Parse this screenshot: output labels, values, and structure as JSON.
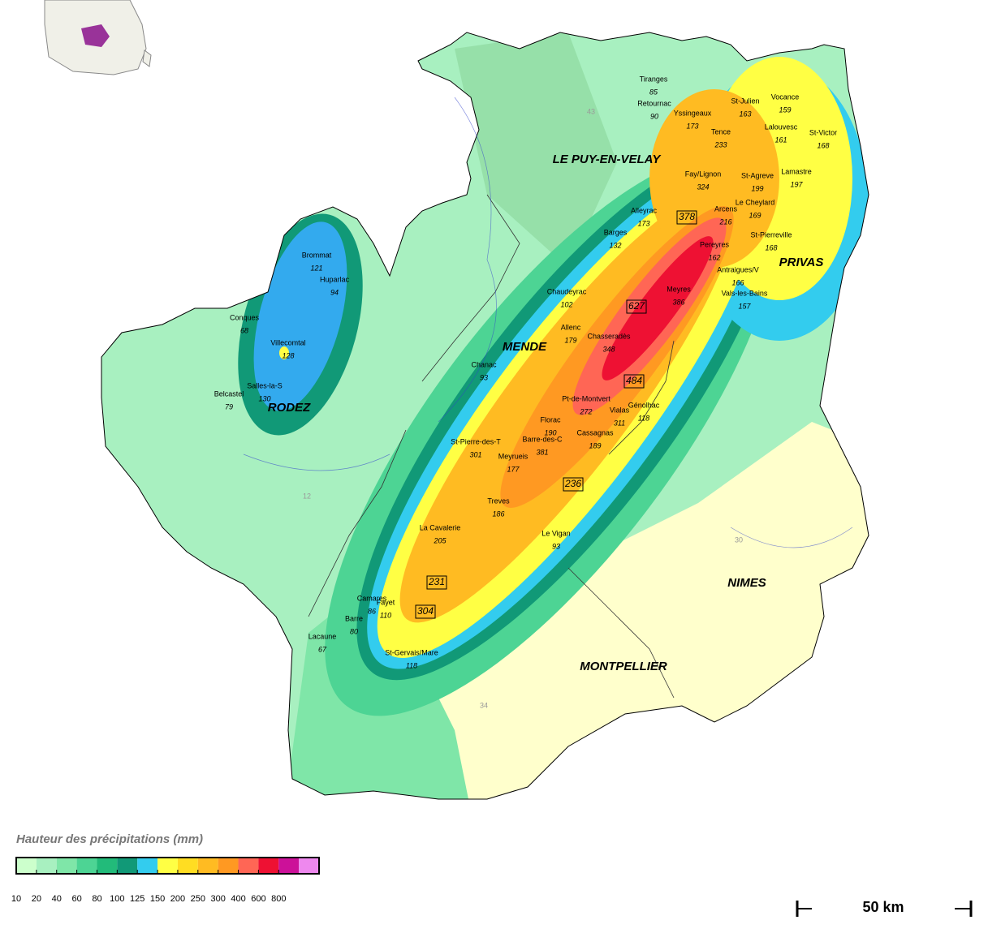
{
  "map": {
    "cities": [
      "LE PUY-EN-VELAY",
      "MENDE",
      "RODEZ",
      "PRIVAS",
      "NIMES",
      "MONTPELLIER"
    ],
    "departments": [
      "43",
      "12",
      "30",
      "34"
    ],
    "stations": [
      {
        "name": "Tiranges",
        "value": 85
      },
      {
        "name": "Retournac",
        "value": 90
      },
      {
        "name": "Yssingeaux",
        "value": 173
      },
      {
        "name": "Tence",
        "value": 233
      },
      {
        "name": "St-Julien",
        "value": 163
      },
      {
        "name": "Vocance",
        "value": 159
      },
      {
        "name": "Lalouvesc",
        "value": 161
      },
      {
        "name": "St-Victor",
        "value": 168
      },
      {
        "name": "Lamastre",
        "value": 197
      },
      {
        "name": "St-Agreve",
        "value": 199
      },
      {
        "name": "Le Cheylard",
        "value": 169
      },
      {
        "name": "Arcens",
        "value": 216
      },
      {
        "name": "Fay/Lignon",
        "value": 324
      },
      {
        "name": "Alleyrac",
        "value": 173
      },
      {
        "name": "Barges",
        "value": 132
      },
      {
        "name": "St-Pierreville",
        "value": 168
      },
      {
        "name": "Pereyres",
        "value": 162
      },
      {
        "name": "Antraigues/V",
        "value": 166
      },
      {
        "name": "Vals-les-Bains",
        "value": 157
      },
      {
        "name": "Meyres",
        "value": 386
      },
      {
        "name": "Chaudeyrac",
        "value": 102
      },
      {
        "name": "Allenc",
        "value": 179
      },
      {
        "name": "Chasseradès",
        "value": 348
      },
      {
        "name": "Chanac",
        "value": 93
      },
      {
        "name": "Pt-de-Montvert",
        "value": 272
      },
      {
        "name": "Florac",
        "value": 190
      },
      {
        "name": "Vialas",
        "value": 311
      },
      {
        "name": "Génolhac",
        "value": 118
      },
      {
        "name": "Cassagnas",
        "value": 189
      },
      {
        "name": "Barre-des-C",
        "value": 381
      },
      {
        "name": "St-Pierre-des-T",
        "value": 301
      },
      {
        "name": "Meyrueis",
        "value": 177
      },
      {
        "name": "Treves",
        "value": 186
      },
      {
        "name": "Le Vigan",
        "value": 93
      },
      {
        "name": "La Cavalerie",
        "value": 205
      },
      {
        "name": "Camares",
        "value": 86
      },
      {
        "name": "Fayet",
        "value": 110
      },
      {
        "name": "Barre",
        "value": 80
      },
      {
        "name": "Lacaune",
        "value": 67
      },
      {
        "name": "St-Gervais/Mare",
        "value": 118
      },
      {
        "name": "Brommat",
        "value": 121
      },
      {
        "name": "Huparlac",
        "value": 94
      },
      {
        "name": "Conques",
        "value": 68
      },
      {
        "name": "Villecomtal",
        "value": 128
      },
      {
        "name": "Salles-la-S",
        "value": 130
      },
      {
        "name": "Belcastel",
        "value": 79
      }
    ],
    "maxima": [
      378,
      627,
      484,
      236,
      231,
      304
    ],
    "legend": {
      "title": "Hauteur des précipitations (mm)",
      "ticks": [
        10,
        20,
        40,
        60,
        80,
        100,
        125,
        150,
        200,
        250,
        300,
        400,
        600,
        800
      ],
      "colors": [
        "#ccffcc",
        "#a8f0c0",
        "#7fe6a8",
        "#4dd494",
        "#22bb7a",
        "#119977",
        "#33ccee",
        "#ffff44",
        "#ffdd22",
        "#ffbb22",
        "#ff9922",
        "#ff6655",
        "#ee1133",
        "#cc1199",
        "#ee88ee"
      ]
    },
    "scale": "50 km"
  }
}
